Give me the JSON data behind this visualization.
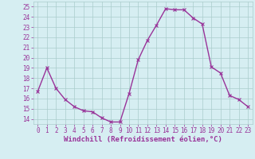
{
  "x": [
    0,
    1,
    2,
    3,
    4,
    5,
    6,
    7,
    8,
    9,
    10,
    11,
    12,
    13,
    14,
    15,
    16,
    17,
    18,
    19,
    20,
    21,
    22,
    23
  ],
  "y": [
    16.7,
    19.0,
    17.0,
    15.9,
    15.2,
    14.8,
    14.7,
    14.1,
    13.7,
    13.7,
    16.5,
    19.8,
    21.7,
    23.2,
    24.8,
    24.7,
    24.7,
    23.9,
    23.3,
    19.1,
    18.5,
    16.3,
    15.9,
    15.2
  ],
  "line_color": "#993399",
  "marker": "x",
  "marker_size": 3,
  "bg_color": "#d6eef2",
  "grid_color": "#aacccc",
  "xlabel": "Windchill (Refroidissement éolien,°C)",
  "xlabel_color": "#993399",
  "tick_color": "#993399",
  "ylim": [
    13.5,
    25.5
  ],
  "yticks": [
    14,
    15,
    16,
    17,
    18,
    19,
    20,
    21,
    22,
    23,
    24,
    25
  ],
  "xticks": [
    0,
    1,
    2,
    3,
    4,
    5,
    6,
    7,
    8,
    9,
    10,
    11,
    12,
    13,
    14,
    15,
    16,
    17,
    18,
    19,
    20,
    21,
    22,
    23
  ],
  "tick_fontsize": 5.5,
  "xlabel_fontsize": 6.5,
  "linewidth": 1.0,
  "spine_color": "#aacccc"
}
